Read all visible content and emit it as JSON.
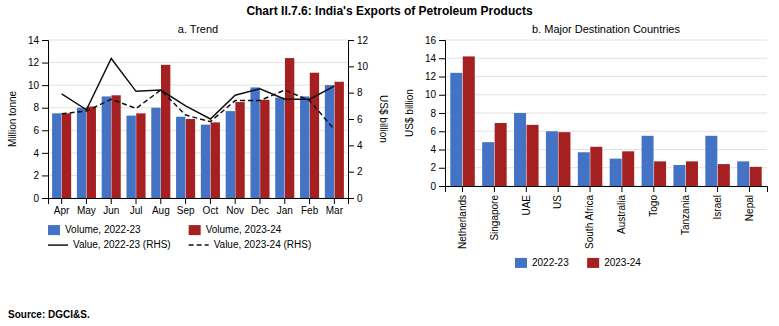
{
  "title": "Chart II.7.6: India's Exports of Petroleum Products",
  "annotations": [
    "Source: DGCI&S."
  ],
  "chart_data": [
    {
      "type": "bar",
      "title": "a. Trend",
      "categories": [
        "Apr",
        "May",
        "Jun",
        "Jul",
        "Aug",
        "Sep",
        "Oct",
        "Nov",
        "Dec",
        "Jan",
        "Feb",
        "Mar"
      ],
      "series": [
        {
          "name": "Volume, 2022-23",
          "type": "bar",
          "color": "#4472C4",
          "values": [
            7.5,
            8.0,
            9.0,
            7.3,
            8.0,
            7.2,
            6.5,
            7.7,
            9.8,
            8.9,
            9.0,
            10.0
          ]
        },
        {
          "name": "Volume, 2023-24",
          "type": "bar",
          "color": "#A52020",
          "values": [
            7.5,
            8.1,
            9.1,
            7.5,
            11.8,
            7.0,
            6.7,
            8.5,
            8.7,
            12.4,
            11.1,
            10.3
          ]
        },
        {
          "name": "Value, 2022-23 (RHS)",
          "type": "line",
          "axis": "y2",
          "color": "#111111",
          "line_style": "solid",
          "values": [
            7.9,
            6.7,
            10.6,
            8.1,
            8.2,
            7.0,
            6.0,
            7.8,
            8.3,
            7.5,
            7.5,
            8.5
          ]
        },
        {
          "name": "Value, 2023-24 (RHS)",
          "type": "line",
          "axis": "y2",
          "color": "#111111",
          "line_style": "dashed",
          "values": [
            6.4,
            6.6,
            7.5,
            6.8,
            8.2,
            6.3,
            5.8,
            7.4,
            7.4,
            8.2,
            7.4,
            5.2
          ]
        }
      ],
      "ylabel": "Million tonne",
      "ylim": [
        0,
        14
      ],
      "yticks": [
        0,
        2,
        4,
        6,
        8,
        10,
        12,
        14
      ],
      "y2label": "US$ billion",
      "y2lim": [
        0,
        12
      ],
      "y2ticks": [
        0,
        2,
        4,
        6,
        8,
        10,
        12
      ],
      "grid": true,
      "legend": "bottom"
    },
    {
      "type": "bar",
      "title": "b. Major Destination Countries",
      "categories": [
        "Netherlands",
        "Singapore",
        "UAE",
        "US",
        "South Africa",
        "Australia",
        "Togo",
        "Tanzania",
        "Israel",
        "Nepal"
      ],
      "series": [
        {
          "name": "2022-23",
          "color": "#4472C4",
          "values": [
            12.4,
            4.8,
            8.0,
            6.0,
            3.7,
            3.0,
            5.5,
            2.3,
            5.5,
            2.7
          ]
        },
        {
          "name": "2023-24",
          "color": "#A52020",
          "values": [
            14.2,
            6.9,
            6.7,
            5.9,
            4.3,
            3.8,
            2.7,
            2.7,
            2.4,
            2.1
          ]
        }
      ],
      "ylabel": "US$ billion",
      "ylim": [
        0,
        16
      ],
      "yticks": [
        0,
        2,
        4,
        6,
        8,
        10,
        12,
        14,
        16
      ],
      "grid": true,
      "legend": "bottom"
    }
  ]
}
